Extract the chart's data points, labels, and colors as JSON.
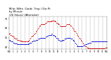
{
  "title": "Milwaukee Weather Outdoor Temp / Dew Point by Minute (24 Hours) (Alternate)",
  "title_line1": "Milw. Wthr. Outdr. Tmp / Dw Pt",
  "title_line2": "by Minute",
  "title_line3": "(24 Hours) (Alternate)",
  "background_color": "#ffffff",
  "grid_color": "#aaaaaa",
  "temp_color": "#cc0000",
  "dew_color": "#0000cc",
  "ylim": [
    39,
    73
  ],
  "ytick_vals": [
    41,
    51,
    61,
    71
  ],
  "xlim": [
    0,
    1440
  ],
  "xtick_positions": [
    0,
    60,
    120,
    180,
    240,
    300,
    360,
    420,
    480,
    540,
    600,
    660,
    720,
    780,
    840,
    900,
    960,
    1020,
    1080,
    1140,
    1200,
    1260,
    1320,
    1380,
    1440
  ],
  "xtick_labels": [
    "MN",
    "1",
    "2",
    "3",
    "4",
    "5",
    "6",
    "7",
    "8",
    "9",
    "10",
    "11",
    "N",
    "1",
    "2",
    "3",
    "4",
    "5",
    "6",
    "7",
    "8",
    "9",
    "10",
    "11",
    "MN"
  ],
  "temp_data": [
    55,
    56,
    55,
    54,
    54,
    53,
    53,
    52,
    52,
    51,
    51,
    50,
    50,
    50,
    49,
    49,
    49,
    49,
    48,
    48,
    48,
    48,
    47,
    47,
    47,
    47,
    47,
    47,
    47,
    47,
    47,
    47,
    47,
    47,
    48,
    49,
    50,
    51,
    52,
    53,
    53,
    53,
    54,
    55,
    55,
    56,
    57,
    58,
    59,
    60,
    61,
    62,
    63,
    64,
    64,
    65,
    65,
    65,
    65,
    65,
    65,
    65,
    66,
    67,
    67,
    68,
    68,
    68,
    68,
    68,
    68,
    68,
    68,
    69,
    69,
    69,
    69,
    69,
    69,
    68,
    68,
    67,
    67,
    66,
    66,
    65,
    65,
    64,
    63,
    63,
    63,
    63,
    63,
    63,
    63,
    63,
    63,
    64,
    64,
    65,
    65,
    65,
    65,
    65,
    65,
    64,
    64,
    63,
    62,
    61,
    60,
    59,
    58,
    58,
    57,
    56,
    55,
    54,
    53,
    52,
    51,
    50,
    50,
    49,
    48,
    47,
    46,
    45,
    44,
    43,
    43,
    42,
    42,
    41,
    41,
    41,
    40,
    40,
    40,
    40,
    40,
    40,
    40,
    40,
    40,
    40,
    40,
    40,
    40,
    40,
    40,
    40,
    40,
    40,
    40,
    40,
    40,
    40,
    40,
    40,
    40,
    40,
    40,
    40,
    40,
    41,
    41,
    41
  ],
  "dew_data": [
    49,
    49,
    48,
    48,
    47,
    47,
    47,
    46,
    46,
    46,
    45,
    45,
    45,
    45,
    44,
    44,
    44,
    44,
    44,
    44,
    44,
    44,
    44,
    44,
    44,
    44,
    44,
    44,
    44,
    44,
    44,
    44,
    44,
    44,
    45,
    45,
    46,
    46,
    46,
    47,
    47,
    47,
    48,
    48,
    48,
    48,
    49,
    49,
    49,
    49,
    50,
    50,
    50,
    50,
    51,
    51,
    51,
    51,
    51,
    51,
    51,
    51,
    51,
    52,
    52,
    53,
    53,
    53,
    54,
    54,
    54,
    54,
    54,
    55,
    55,
    54,
    54,
    54,
    53,
    52,
    52,
    51,
    51,
    50,
    50,
    49,
    49,
    48,
    48,
    48,
    48,
    48,
    49,
    49,
    49,
    50,
    50,
    50,
    50,
    51,
    51,
    51,
    51,
    51,
    51,
    51,
    50,
    50,
    50,
    49,
    49,
    48,
    47,
    46,
    45,
    44,
    43,
    42,
    42,
    42,
    42,
    42,
    42,
    42,
    42,
    42,
    42,
    43,
    43,
    43,
    43,
    44,
    44,
    44,
    45,
    45,
    45,
    45,
    46,
    46,
    46,
    47,
    47,
    47,
    47,
    47,
    47,
    47,
    47,
    47,
    47,
    47,
    47,
    47,
    47,
    47,
    47,
    47,
    47,
    47,
    47,
    47,
    47,
    47,
    47,
    47,
    47,
    47
  ]
}
